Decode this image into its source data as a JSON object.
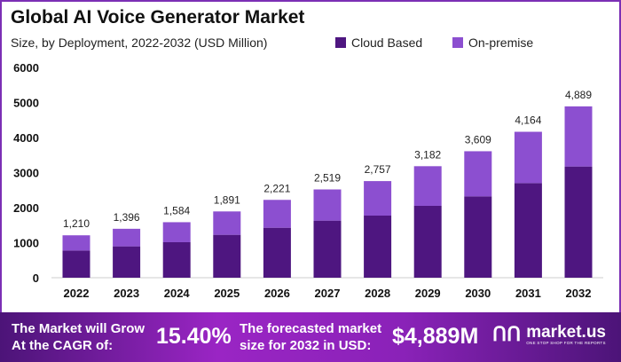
{
  "chart_data": {
    "type": "bar",
    "stacked": true,
    "title": "Global AI Voice Generator Market",
    "subtitle": "Size, by Deployment, 2022-2032 (USD Million)",
    "categories": [
      "2022",
      "2023",
      "2024",
      "2025",
      "2026",
      "2027",
      "2028",
      "2029",
      "2030",
      "2031",
      "2032"
    ],
    "series": [
      {
        "name": "Cloud Based",
        "color": "#4e1680",
        "values": [
          776,
          895,
          1013,
          1224,
          1426,
          1629,
          1772,
          2051,
          2321,
          2700,
          3173
        ]
      },
      {
        "name": "On-premise",
        "color": "#8c4fd0",
        "values": [
          434,
          501,
          571,
          667,
          795,
          890,
          985,
          1131,
          1288,
          1464,
          1716
        ]
      }
    ],
    "totals": [
      "1,210",
      "1,396",
      "1,584",
      "1,891",
      "2,221",
      "2,519",
      "2,757",
      "3,182",
      "3,609",
      "4,164",
      "4,889"
    ],
    "yticks": [
      "0",
      "1000",
      "2000",
      "3000",
      "4000",
      "5000",
      "6000"
    ],
    "ylim": [
      0,
      6000
    ],
    "grid": false,
    "legend": "top-right"
  },
  "footer": {
    "cagr_label_1": "The Market will Grow",
    "cagr_label_2": "At the CAGR of:",
    "cagr_value": "15.40%",
    "forecast_label_1": "The forecasted market",
    "forecast_label_2": "size for 2032 in USD:",
    "forecast_value": "$4,889M",
    "brand": "market.us",
    "brand_tagline": "ONE STOP SHOP FOR THE REPORTS"
  }
}
